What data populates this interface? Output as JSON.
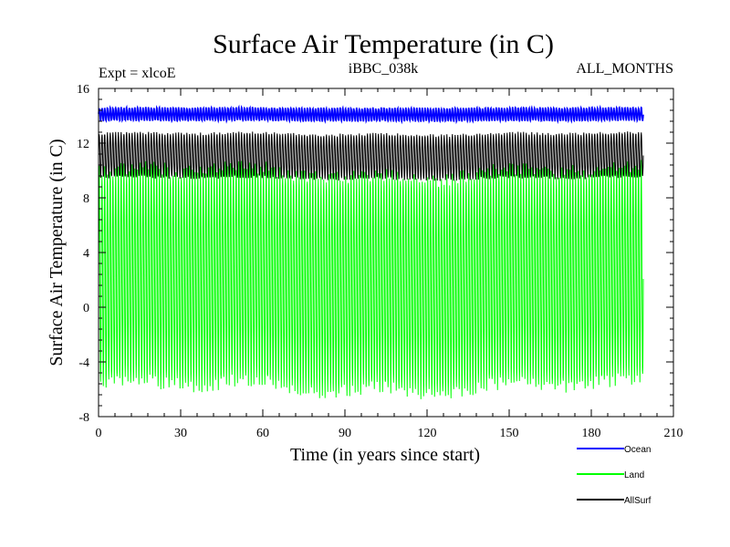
{
  "chart_data": {
    "type": "line",
    "title": "Surface Air Temperature (in C)",
    "left_label": "Expt = xlcoE",
    "center_label": "iBBC_038k",
    "right_label": "ALL_MONTHS",
    "xlabel": "Time (in years since start)",
    "ylabel": "Surface Air Temperature (in C)",
    "xlim": [
      0,
      210
    ],
    "ylim": [
      -8,
      16
    ],
    "xticks": [
      0,
      30,
      60,
      90,
      120,
      150,
      180,
      210
    ],
    "yticks": [
      -8,
      -4,
      0,
      4,
      8,
      12,
      16
    ],
    "x_tick_labels": [
      "0",
      "30",
      "60",
      "90",
      "120",
      "150",
      "180",
      "210"
    ],
    "y_tick_labels": [
      "-8",
      "-4",
      "0",
      "4",
      "8",
      "12",
      "16"
    ],
    "x_range": [
      0,
      199
    ],
    "samples_per_year": 12,
    "series": [
      {
        "name": "Ocean",
        "color": "#0000ff",
        "monthly_min": 13.6,
        "monthly_max": 14.6,
        "annual_mean": 14.1
      },
      {
        "name": "Land",
        "color": "#00ff00",
        "monthly_min": -6.5,
        "monthly_max": 10.5,
        "annual_mean": 2.0
      },
      {
        "name": "AllSurf",
        "color": "#000000",
        "monthly_min": 9.3,
        "monthly_max": 12.8,
        "annual_mean": 11.0
      }
    ]
  }
}
